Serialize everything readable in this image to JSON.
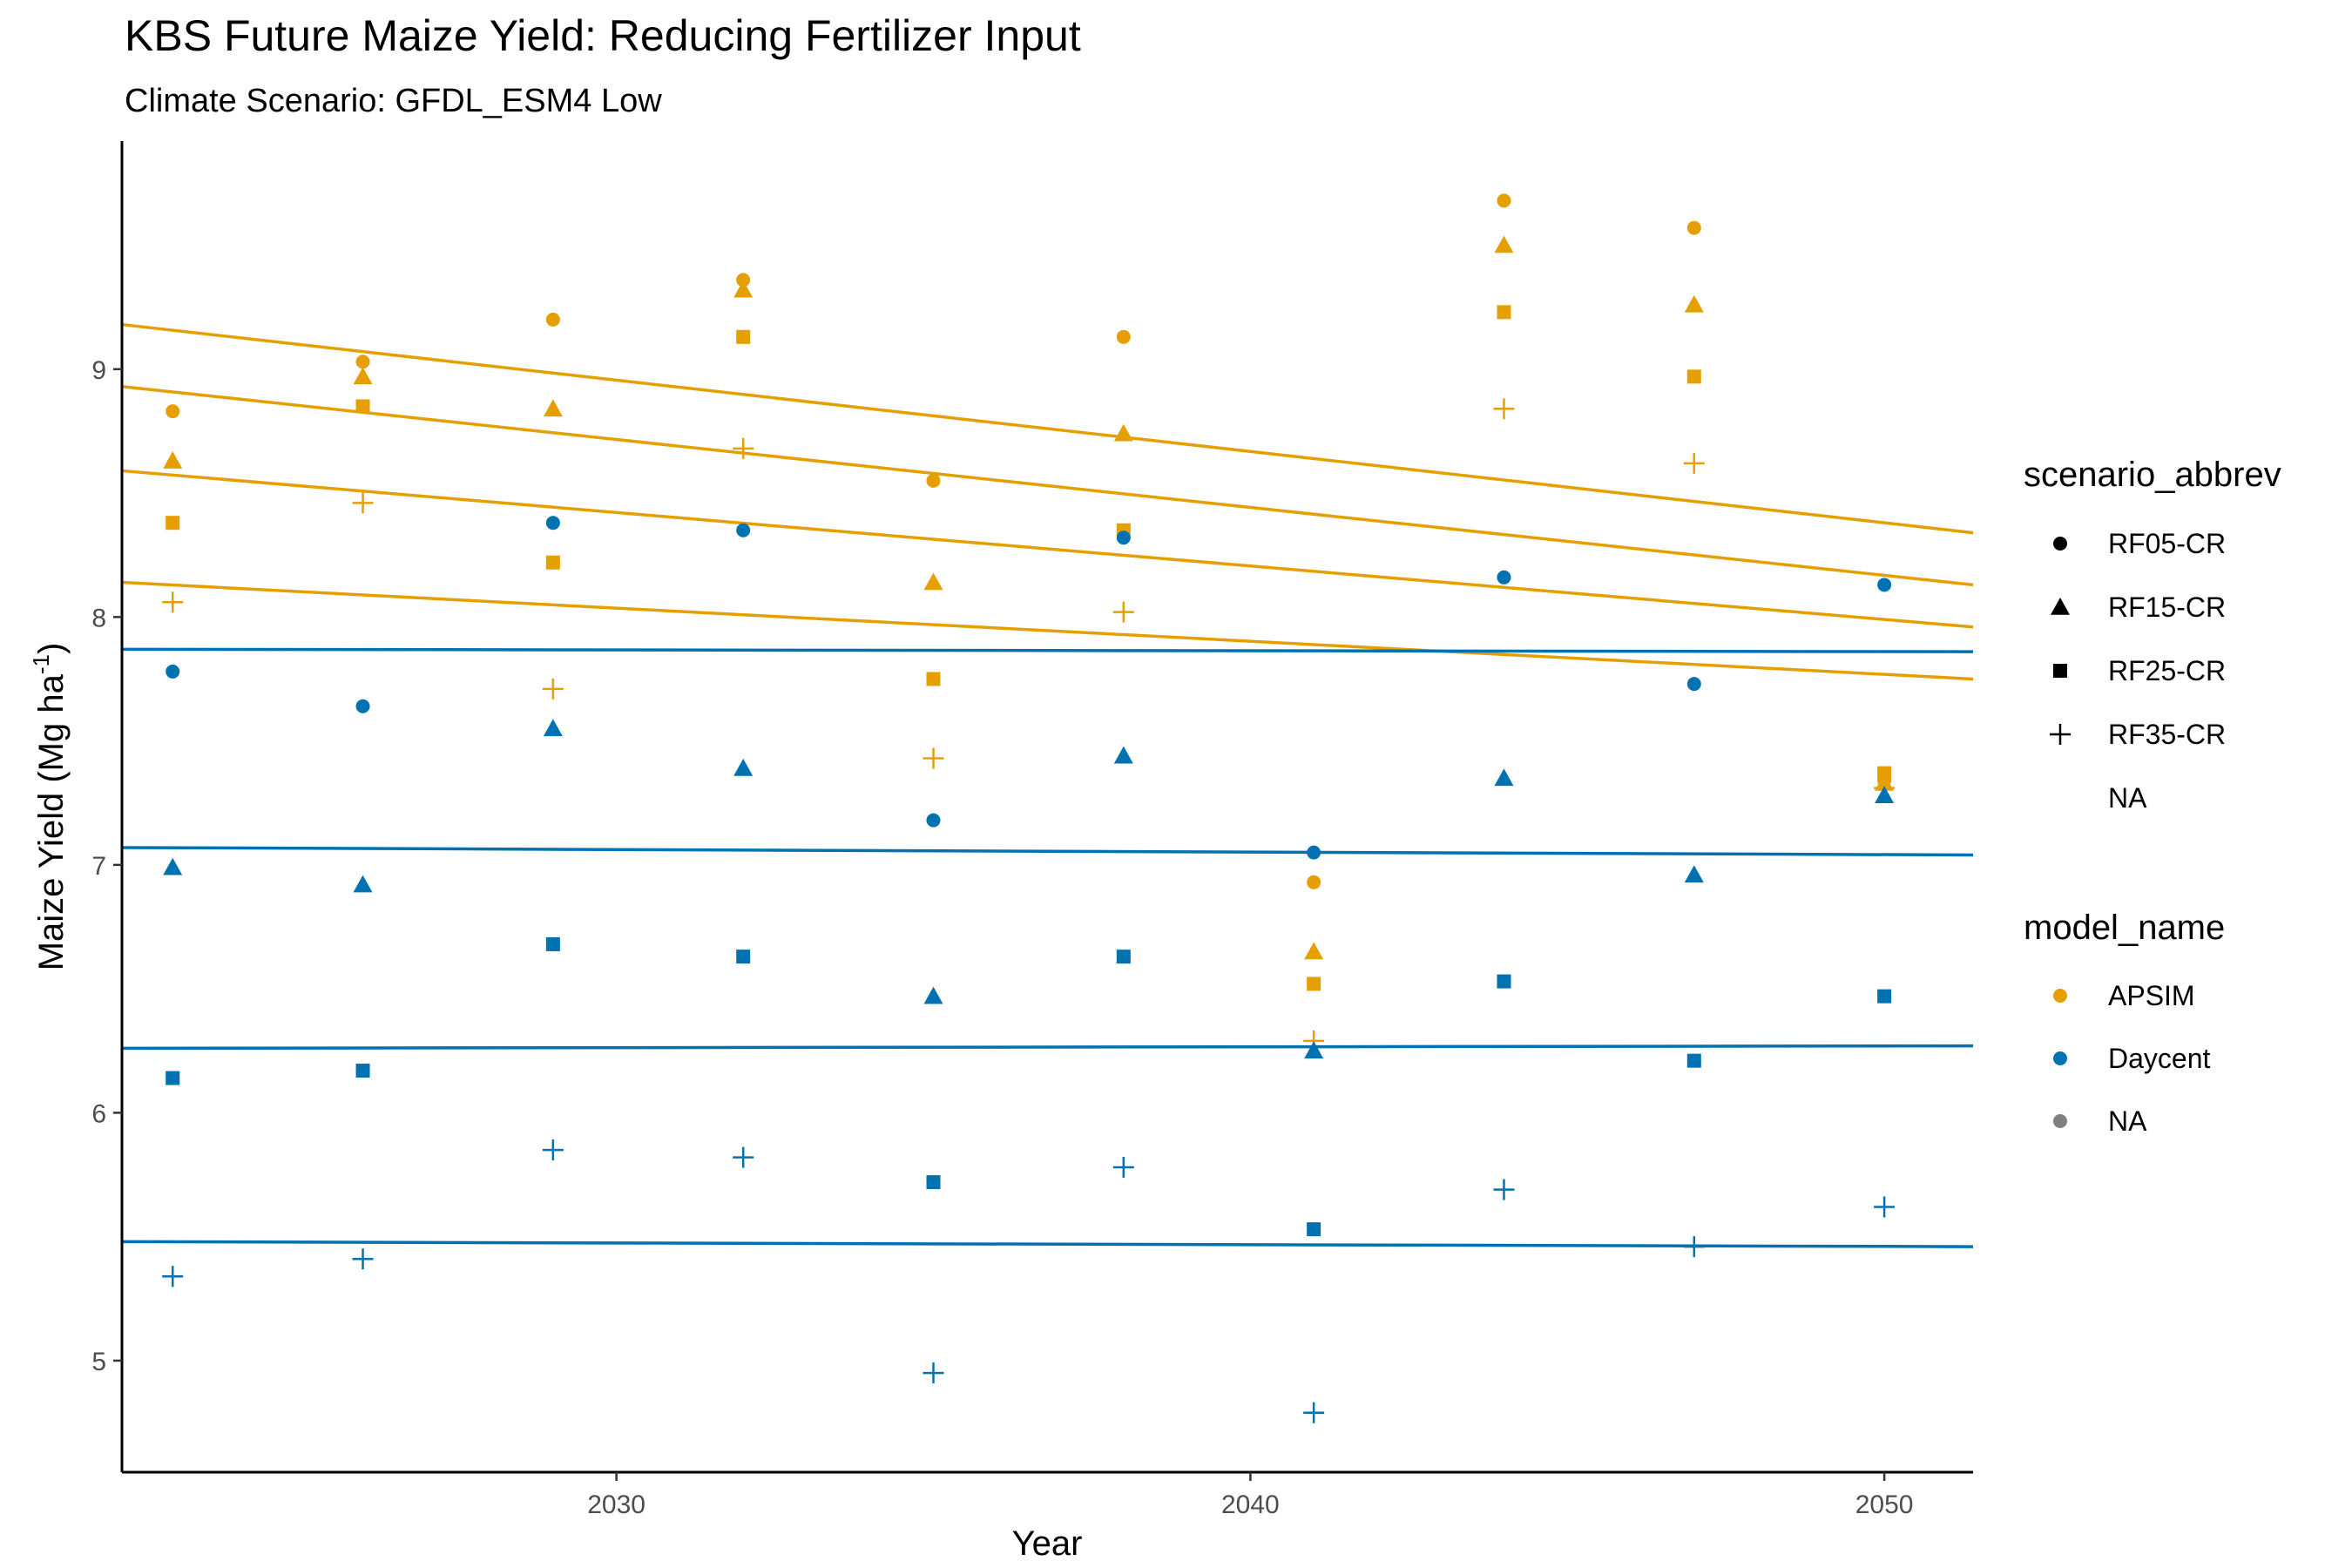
{
  "chart_data": {
    "type": "scatter",
    "title": "KBS Future Maize Yield: Reducing Fertilizer Input",
    "subtitle": "Climate Scenario: GFDL_ESM4 Low",
    "xlabel": "Year",
    "ylabel": "Maize Yield (Mg ha",
    "ylabel_superscript": "-1",
    "ylabel_suffix": ")",
    "xlim": [
      2022.2,
      2051.4
    ],
    "ylim": [
      4.55,
      9.92
    ],
    "x_ticks": [
      2030,
      2040,
      2050
    ],
    "y_ticks": [
      5,
      6,
      7,
      8,
      9
    ],
    "grid": false,
    "colors": {
      "APSIM": "#E69F00",
      "Daycent": "#0072B2",
      "NA": "#808080"
    },
    "points": [
      {
        "model": "APSIM",
        "scenario": "RF05-CR",
        "x": [
          2023,
          2026,
          2029,
          2032,
          2035,
          2038,
          2041,
          2044,
          2047,
          2050
        ],
        "y": [
          8.83,
          9.03,
          9.2,
          9.36,
          8.55,
          9.13,
          6.93,
          9.68,
          9.57,
          7.34
        ]
      },
      {
        "model": "APSIM",
        "scenario": "RF15-CR",
        "x": [
          2023,
          2026,
          2029,
          2032,
          2035,
          2038,
          2041,
          2044,
          2047,
          2050
        ],
        "y": [
          8.63,
          8.97,
          8.84,
          9.32,
          8.14,
          8.74,
          6.65,
          9.5,
          9.26,
          7.33
        ]
      },
      {
        "model": "APSIM",
        "scenario": "RF25-CR",
        "x": [
          2023,
          2026,
          2029,
          2032,
          2035,
          2038,
          2041,
          2044,
          2047,
          2050
        ],
        "y": [
          8.38,
          8.85,
          8.22,
          9.13,
          7.75,
          8.35,
          6.52,
          9.23,
          8.97,
          7.37
        ]
      },
      {
        "model": "APSIM",
        "scenario": "RF35-CR",
        "x": [
          2023,
          2026,
          2029,
          2032,
          2035,
          2038,
          2041,
          2044,
          2047,
          2050
        ],
        "y": [
          8.06,
          8.46,
          7.71,
          8.68,
          7.43,
          8.02,
          6.29,
          8.84,
          8.62,
          7.31
        ]
      },
      {
        "model": "Daycent",
        "scenario": "RF05-CR",
        "x": [
          2023,
          2026,
          2029,
          2032,
          2035,
          2038,
          2041,
          2044,
          2047,
          2050
        ],
        "y": [
          7.78,
          7.64,
          8.38,
          8.35,
          7.18,
          8.32,
          7.05,
          8.16,
          7.73,
          8.13
        ]
      },
      {
        "model": "Daycent",
        "scenario": "RF15-CR",
        "x": [
          2023,
          2026,
          2029,
          2032,
          2035,
          2038,
          2041,
          2044,
          2047,
          2050
        ],
        "y": [
          6.99,
          6.92,
          7.55,
          7.39,
          6.47,
          7.44,
          6.25,
          7.35,
          6.96,
          7.28
        ]
      },
      {
        "model": "Daycent",
        "scenario": "RF25-CR",
        "x": [
          2023,
          2026,
          2029,
          2032,
          2035,
          2038,
          2041,
          2044,
          2047,
          2050
        ],
        "y": [
          6.14,
          6.17,
          6.68,
          6.63,
          5.72,
          6.63,
          5.53,
          6.53,
          6.21,
          6.47
        ]
      },
      {
        "model": "Daycent",
        "scenario": "RF35-CR",
        "x": [
          2023,
          2026,
          2029,
          2032,
          2035,
          2038,
          2041,
          2044,
          2047,
          2050
        ],
        "y": [
          5.34,
          5.41,
          5.85,
          5.82,
          4.95,
          5.78,
          4.79,
          5.69,
          5.46,
          5.62
        ]
      }
    ],
    "trend_lines": [
      {
        "model": "APSIM",
        "scenario": "RF05-CR",
        "x": [
          2022.2,
          2051.4
        ],
        "y": [
          9.18,
          8.34
        ]
      },
      {
        "model": "APSIM",
        "scenario": "RF15-CR",
        "x": [
          2022.2,
          2051.4
        ],
        "y": [
          8.93,
          8.13
        ]
      },
      {
        "model": "APSIM",
        "scenario": "RF25-CR",
        "x": [
          2022.2,
          2051.4
        ],
        "y": [
          8.59,
          7.96
        ]
      },
      {
        "model": "APSIM",
        "scenario": "RF35-CR",
        "x": [
          2022.2,
          2051.4
        ],
        "y": [
          8.14,
          7.75
        ]
      },
      {
        "model": "Daycent",
        "scenario": "RF05-CR",
        "x": [
          2022.2,
          2051.4
        ],
        "y": [
          7.87,
          7.86
        ]
      },
      {
        "model": "Daycent",
        "scenario": "RF15-CR",
        "x": [
          2022.2,
          2051.4
        ],
        "y": [
          7.07,
          7.04
        ]
      },
      {
        "model": "Daycent",
        "scenario": "RF25-CR",
        "x": [
          2022.2,
          2051.4
        ],
        "y": [
          6.26,
          6.27
        ]
      },
      {
        "model": "Daycent",
        "scenario": "RF35-CR",
        "x": [
          2022.2,
          2051.4
        ],
        "y": [
          5.48,
          5.46
        ]
      }
    ],
    "legend_placement": "right",
    "legends": [
      {
        "title": "scenario_abbrev",
        "entries": [
          {
            "label": "RF05-CR",
            "shape": "circle"
          },
          {
            "label": "RF15-CR",
            "shape": "triangle"
          },
          {
            "label": "RF25-CR",
            "shape": "square"
          },
          {
            "label": "RF35-CR",
            "shape": "plus"
          },
          {
            "label": "NA",
            "shape": "none"
          }
        ]
      },
      {
        "title": "model_name",
        "entries": [
          {
            "label": "APSIM",
            "shape": "circle",
            "color": "#E69F00"
          },
          {
            "label": "Daycent",
            "shape": "circle",
            "color": "#0072B2"
          },
          {
            "label": "NA",
            "shape": "circle",
            "color": "#808080"
          }
        ]
      }
    ]
  }
}
